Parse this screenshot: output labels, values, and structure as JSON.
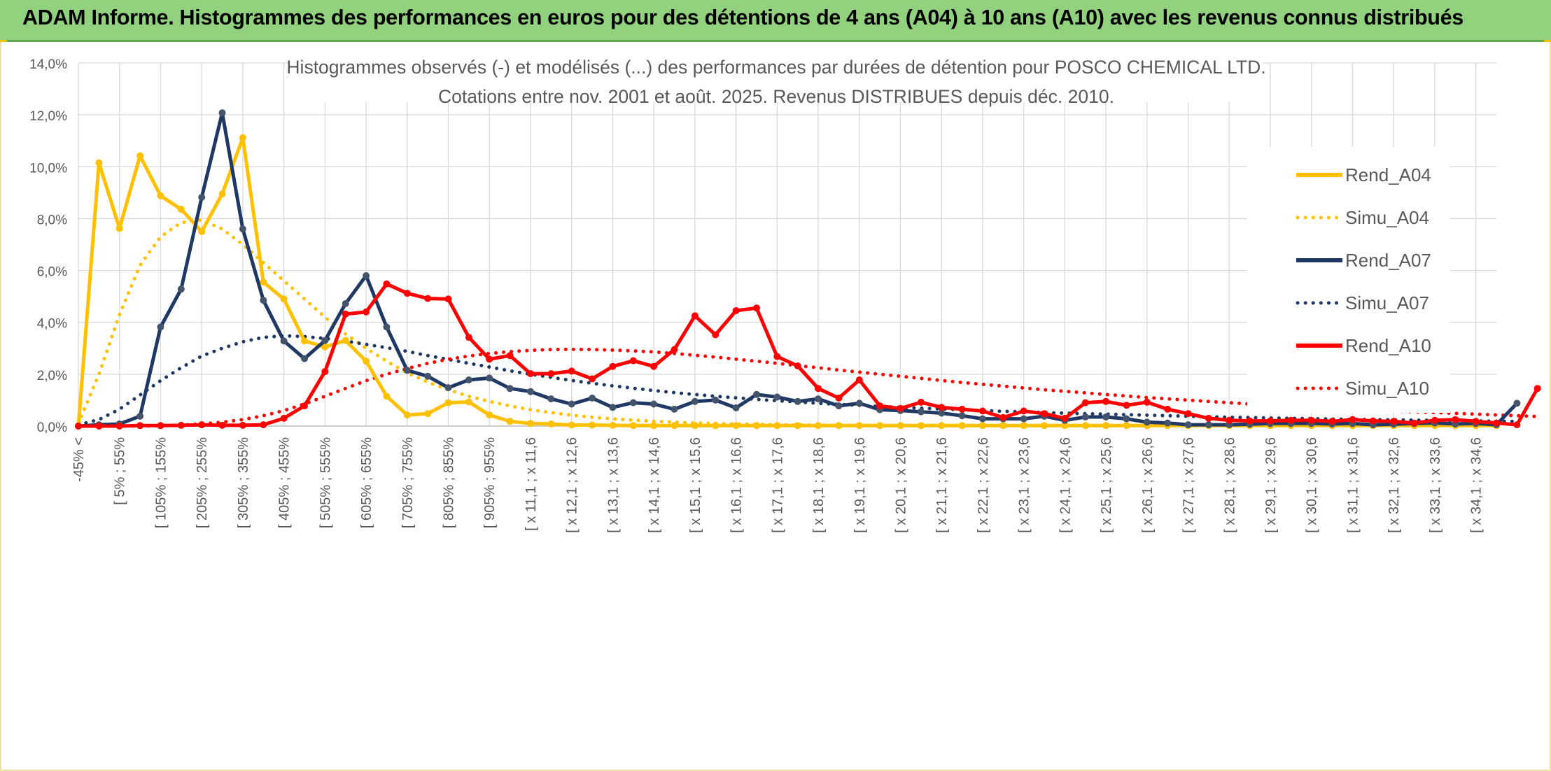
{
  "banner": {
    "title": "ADAM Informe. Histogrammes des performances en euros pour des détentions de 4 ans (A04) à 10 ans (A10) avec les revenus connus distribués"
  },
  "colors": {
    "A04": "#ffc000",
    "A07": "#1f3864",
    "A10": "#ff0000",
    "banner_bg": "#92d27e",
    "grid": "#d9d9d9"
  },
  "chart_data": {
    "type": "line",
    "title": "Histogrammes observés (-) et modélisés (...) des performances par durées de détention pour POSCO CHEMICAL LTD.",
    "subtitle": "Cotations entre nov. 2001 et août. 2025. Revenus DISTRIBUES depuis déc. 2010.",
    "xlabel": "",
    "ylabel": "",
    "ylim": [
      0,
      14
    ],
    "y_ticks": [
      "0,0%",
      "2,0%",
      "4,0%",
      "6,0%",
      "8,0%",
      "10,0%",
      "12,0%",
      "14,0%"
    ],
    "grid": true,
    "legend_position": "right",
    "x_labels": [
      "-45% <",
      "[ 5% ; 55%",
      "[ 105% ; 155%",
      "[ 205% ; 255%",
      "[ 305% ; 355%",
      "[ 405% ; 455%",
      "[ 505% ; 555%",
      "[ 605% ; 655%",
      "[ 705% ; 755%",
      "[ 805% ; 855%",
      "[ 905% ; 955%",
      "[ x 11,1 ; x 11,6",
      "[ x 12,1 ; x 12,6",
      "[ x 13,1 ; x 13,6",
      "[ x 14,1 ; x 14,6",
      "[ x 15,1 ; x 15,6",
      "[ x 16,1 ; x 16,6",
      "[ x 17,1 ; x 17,6",
      "[ x 18,1 ; x 18,6",
      "[ x 19,1 ; x 19,6",
      "[ x 20,1 ; x 20,6",
      "[ x 21,1 ; x 21,6",
      "[ x 22,1 ; x 22,6",
      "[ x 23,1 ; x 23,6",
      "[ x 24,1 ; x 24,6",
      "[ x 25,1 ; x 25,6",
      "[ x 26,1 ; x 26,6",
      "[ x 27,1 ; x 27,6",
      "[ x 28,1 ; x 28,6",
      "[ x 29,1 ; x 29,6",
      "[ x 30,1 ; x 30,6",
      "[ x 31,1 ; x 31,6",
      "[ x 32,1 ; x 32,6",
      "[ x 33,1 ; x 33,6",
      "[ x 34,1 ; x 34,6"
    ],
    "series": [
      {
        "name": "Rend_A04",
        "style": "solid",
        "color": "#ffc000",
        "values": [
          0.0,
          10.15,
          7.62,
          10.42,
          8.88,
          8.36,
          7.5,
          8.95,
          11.12,
          5.55,
          4.9,
          3.28,
          3.05,
          3.3,
          2.5,
          1.15,
          0.43,
          0.48,
          0.9,
          0.93,
          0.43,
          0.18,
          0.1,
          0.08,
          0.04,
          0.04,
          0.03,
          0.02,
          0.02,
          0.02,
          0.02,
          0.02,
          0.02,
          0.02,
          0.02,
          0.02,
          0.02,
          0.02,
          0.02,
          0.02,
          0.02,
          0.02,
          0.02,
          0.02,
          0.02,
          0.02,
          0.02,
          0.02,
          0.02,
          0.02,
          0.02,
          0.02,
          0.02,
          0.02,
          0.02,
          0.02,
          0.02,
          0.02,
          0.02,
          0.02,
          0.02,
          0.02,
          0.02,
          0.02,
          0.02,
          0.02,
          0.02,
          0.02,
          0.02,
          0.02
        ]
      },
      {
        "name": "Simu_A04",
        "style": "dotted",
        "color": "#ffc000",
        "values": [
          0.1,
          2.0,
          4.3,
          6.2,
          7.3,
          7.85,
          7.95,
          7.6,
          7.0,
          6.3,
          5.6,
          4.9,
          4.2,
          3.55,
          3.0,
          2.5,
          2.05,
          1.7,
          1.4,
          1.15,
          0.95,
          0.78,
          0.63,
          0.52,
          0.42,
          0.34,
          0.28,
          0.23,
          0.19,
          0.15,
          0.12,
          0.1,
          0.08,
          0.07,
          0.05,
          0.04,
          0.04,
          0.03,
          0.03,
          0.02,
          0.02,
          0.02,
          0.02,
          0.02,
          0.02,
          0.02,
          0.02,
          0.02,
          0.02,
          0.02,
          0.02,
          0.02,
          0.02,
          0.02,
          0.02,
          0.02,
          0.02,
          0.02,
          0.02,
          0.02,
          0.02,
          0.02,
          0.02,
          0.02,
          0.02,
          0.02,
          0.02,
          0.02,
          0.02,
          0.02
        ]
      },
      {
        "name": "Rend_A07",
        "style": "solid",
        "color": "#1f3864",
        "values": [
          0.0,
          0.05,
          0.08,
          0.38,
          3.82,
          5.28,
          8.82,
          12.08,
          7.6,
          4.85,
          3.28,
          2.6,
          3.3,
          4.72,
          5.8,
          3.82,
          2.15,
          1.92,
          1.48,
          1.78,
          1.85,
          1.45,
          1.33,
          1.05,
          0.85,
          1.08,
          0.72,
          0.9,
          0.85,
          0.65,
          0.95,
          1.0,
          0.7,
          1.22,
          1.12,
          0.95,
          1.05,
          0.78,
          0.88,
          0.63,
          0.6,
          0.55,
          0.5,
          0.4,
          0.28,
          0.28,
          0.28,
          0.38,
          0.22,
          0.35,
          0.35,
          0.28,
          0.15,
          0.12,
          0.05,
          0.05,
          0.05,
          0.07,
          0.1,
          0.1,
          0.1,
          0.08,
          0.1,
          0.05,
          0.07,
          0.1,
          0.12,
          0.08,
          0.1,
          0.05,
          0.88
        ]
      },
      {
        "name": "Simu_A07",
        "style": "dotted",
        "color": "#1f3864",
        "values": [
          0.05,
          0.25,
          0.65,
          1.2,
          1.75,
          2.25,
          2.7,
          3.0,
          3.25,
          3.42,
          3.48,
          3.45,
          3.38,
          3.28,
          3.15,
          3.02,
          2.88,
          2.72,
          2.57,
          2.42,
          2.28,
          2.13,
          2.0,
          1.88,
          1.76,
          1.65,
          1.55,
          1.46,
          1.37,
          1.29,
          1.22,
          1.15,
          1.09,
          1.03,
          0.98,
          0.93,
          0.88,
          0.84,
          0.8,
          0.76,
          0.72,
          0.69,
          0.66,
          0.63,
          0.6,
          0.57,
          0.55,
          0.52,
          0.5,
          0.48,
          0.46,
          0.44,
          0.42,
          0.4,
          0.38,
          0.36,
          0.34,
          0.33,
          0.31,
          0.3,
          0.29,
          0.27,
          0.26,
          0.25,
          0.24,
          0.23,
          0.22,
          0.21,
          0.2,
          0.19,
          0.18
        ]
      },
      {
        "name": "Rend_A10",
        "style": "solid",
        "color": "#ff0000",
        "values": [
          0.0,
          0.0,
          0.0,
          0.02,
          0.02,
          0.03,
          0.05,
          0.03,
          0.03,
          0.05,
          0.3,
          0.78,
          2.1,
          4.32,
          4.4,
          5.48,
          5.12,
          4.92,
          4.9,
          3.42,
          2.58,
          2.72,
          2.02,
          2.02,
          2.12,
          1.82,
          2.3,
          2.52,
          2.3,
          2.95,
          4.25,
          3.52,
          4.45,
          4.55,
          2.68,
          2.32,
          1.45,
          1.08,
          1.78,
          0.78,
          0.68,
          0.92,
          0.72,
          0.65,
          0.58,
          0.33,
          0.58,
          0.48,
          0.3,
          0.9,
          0.95,
          0.8,
          0.92,
          0.65,
          0.48,
          0.3,
          0.22,
          0.2,
          0.2,
          0.22,
          0.22,
          0.18,
          0.25,
          0.2,
          0.18,
          0.12,
          0.22,
          0.25,
          0.18,
          0.12,
          0.05,
          1.45
        ]
      },
      {
        "name": "Simu_A10",
        "style": "dotted",
        "color": "#ff0000",
        "values": [
          0.0,
          0.0,
          0.0,
          0.0,
          0.02,
          0.04,
          0.08,
          0.15,
          0.25,
          0.4,
          0.6,
          0.85,
          1.15,
          1.45,
          1.75,
          2.0,
          2.22,
          2.42,
          2.58,
          2.7,
          2.8,
          2.87,
          2.92,
          2.95,
          2.96,
          2.95,
          2.93,
          2.9,
          2.86,
          2.8,
          2.73,
          2.66,
          2.58,
          2.5,
          2.42,
          2.33,
          2.25,
          2.16,
          2.08,
          2.0,
          1.92,
          1.84,
          1.76,
          1.68,
          1.61,
          1.54,
          1.47,
          1.4,
          1.34,
          1.28,
          1.22,
          1.16,
          1.1,
          1.05,
          1.0,
          0.95,
          0.9,
          0.85,
          0.81,
          0.77,
          0.73,
          0.69,
          0.65,
          0.62,
          0.58,
          0.55,
          0.52,
          0.49,
          0.46,
          0.43,
          0.4,
          0.37
        ]
      }
    ]
  }
}
